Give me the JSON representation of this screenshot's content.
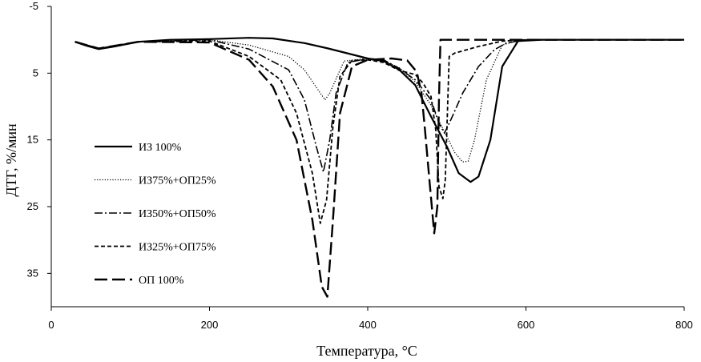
{
  "chart_data": {
    "type": "line",
    "title": "",
    "xlabel": "Температура, °С",
    "ylabel": "ДТГ, %/мин",
    "xlim": [
      0,
      800
    ],
    "ylim": [
      -5,
      40
    ],
    "y_inverted": true,
    "grid": false,
    "legend_position": "left",
    "x_ticks": [
      0,
      200,
      400,
      600,
      800
    ],
    "x_tick_labels": [
      "0",
      "200",
      "400",
      "600",
      "800"
    ],
    "y_ticks": [
      -5,
      5,
      15,
      25,
      35
    ],
    "y_tick_labels": [
      "-5",
      "5",
      "15",
      "25",
      "35"
    ],
    "series": [
      {
        "name": "ИЗ 100%",
        "style": "solid",
        "x": [
          30,
          45,
          60,
          80,
          110,
          150,
          200,
          250,
          280,
          320,
          350,
          380,
          400,
          420,
          440,
          460,
          480,
          500,
          515,
          530,
          540,
          555,
          570,
          590,
          620,
          700,
          800
        ],
        "y": [
          0.3,
          0.9,
          1.4,
          1.0,
          0.3,
          0.0,
          -0.1,
          -0.3,
          -0.2,
          0.5,
          1.3,
          2.2,
          2.8,
          3.2,
          4.5,
          6.8,
          11.5,
          16.0,
          20.0,
          21.3,
          20.5,
          15.0,
          4.0,
          0.2,
          0.0,
          0.0,
          0.0
        ]
      },
      {
        "name": "ИЗ75%+ОП25%",
        "style": "dotted",
        "x": [
          30,
          60,
          110,
          200,
          250,
          300,
          320,
          340,
          346,
          352,
          370,
          400,
          420,
          440,
          460,
          480,
          500,
          510,
          520,
          527,
          535,
          550,
          570,
          590,
          620,
          800
        ],
        "y": [
          0.3,
          1.3,
          0.3,
          0.0,
          0.8,
          2.5,
          4.5,
          8.0,
          9.0,
          8.0,
          3.2,
          2.8,
          3.1,
          4.2,
          6.3,
          9.8,
          14.5,
          16.9,
          18.3,
          18.2,
          15.0,
          6.0,
          0.8,
          0.1,
          0.0,
          0.0
        ]
      },
      {
        "name": "ИЗ50%+ОП50%",
        "style": "dashdot",
        "x": [
          30,
          60,
          110,
          200,
          250,
          300,
          320,
          335,
          344,
          352,
          360,
          375,
          400,
          420,
          440,
          460,
          480,
          490,
          497,
          505,
          520,
          540,
          560,
          575,
          600,
          800
        ],
        "y": [
          0.3,
          1.3,
          0.3,
          0.0,
          1.4,
          4.5,
          9.0,
          16.0,
          19.8,
          15.0,
          8.0,
          3.4,
          2.8,
          3.0,
          4.3,
          6.0,
          9.0,
          12.5,
          14.0,
          12.0,
          8.0,
          4.0,
          1.5,
          0.5,
          0.0,
          0.0
        ]
      },
      {
        "name": "ИЗ25%+ОП75%",
        "style": "dashed-short",
        "x": [
          30,
          60,
          110,
          200,
          250,
          290,
          310,
          330,
          340,
          348,
          356,
          365,
          380,
          400,
          420,
          440,
          460,
          470,
          480,
          486,
          490,
          495,
          498,
          503,
          510,
          540,
          570,
          600,
          800
        ],
        "y": [
          0.3,
          1.3,
          0.3,
          0.2,
          2.5,
          6.0,
          11.0,
          20.0,
          27.5,
          24.0,
          13.0,
          5.5,
          3.1,
          3.0,
          3.4,
          4.6,
          5.2,
          6.5,
          8.5,
          13.5,
          22.0,
          23.8,
          21.0,
          2.5,
          2.0,
          1.0,
          0.2,
          0.0,
          0.0
        ]
      },
      {
        "name": "ОП 100%",
        "style": "dashed-long",
        "x": [
          30,
          60,
          110,
          200,
          250,
          280,
          310,
          330,
          342,
          349,
          356,
          365,
          380,
          400,
          430,
          450,
          462,
          468,
          472,
          478,
          484,
          488,
          490,
          492,
          495,
          510,
          560,
          600,
          800
        ],
        "y": [
          0.3,
          1.3,
          0.3,
          0.4,
          3.0,
          7.0,
          15.0,
          27.0,
          37.0,
          38.5,
          27.0,
          11.0,
          4.0,
          3.0,
          2.8,
          3.1,
          4.8,
          8.0,
          13.0,
          21.0,
          29.0,
          25.0,
          9.0,
          0.0,
          0.0,
          0.0,
          0.0,
          0.0,
          0.0
        ]
      }
    ]
  }
}
